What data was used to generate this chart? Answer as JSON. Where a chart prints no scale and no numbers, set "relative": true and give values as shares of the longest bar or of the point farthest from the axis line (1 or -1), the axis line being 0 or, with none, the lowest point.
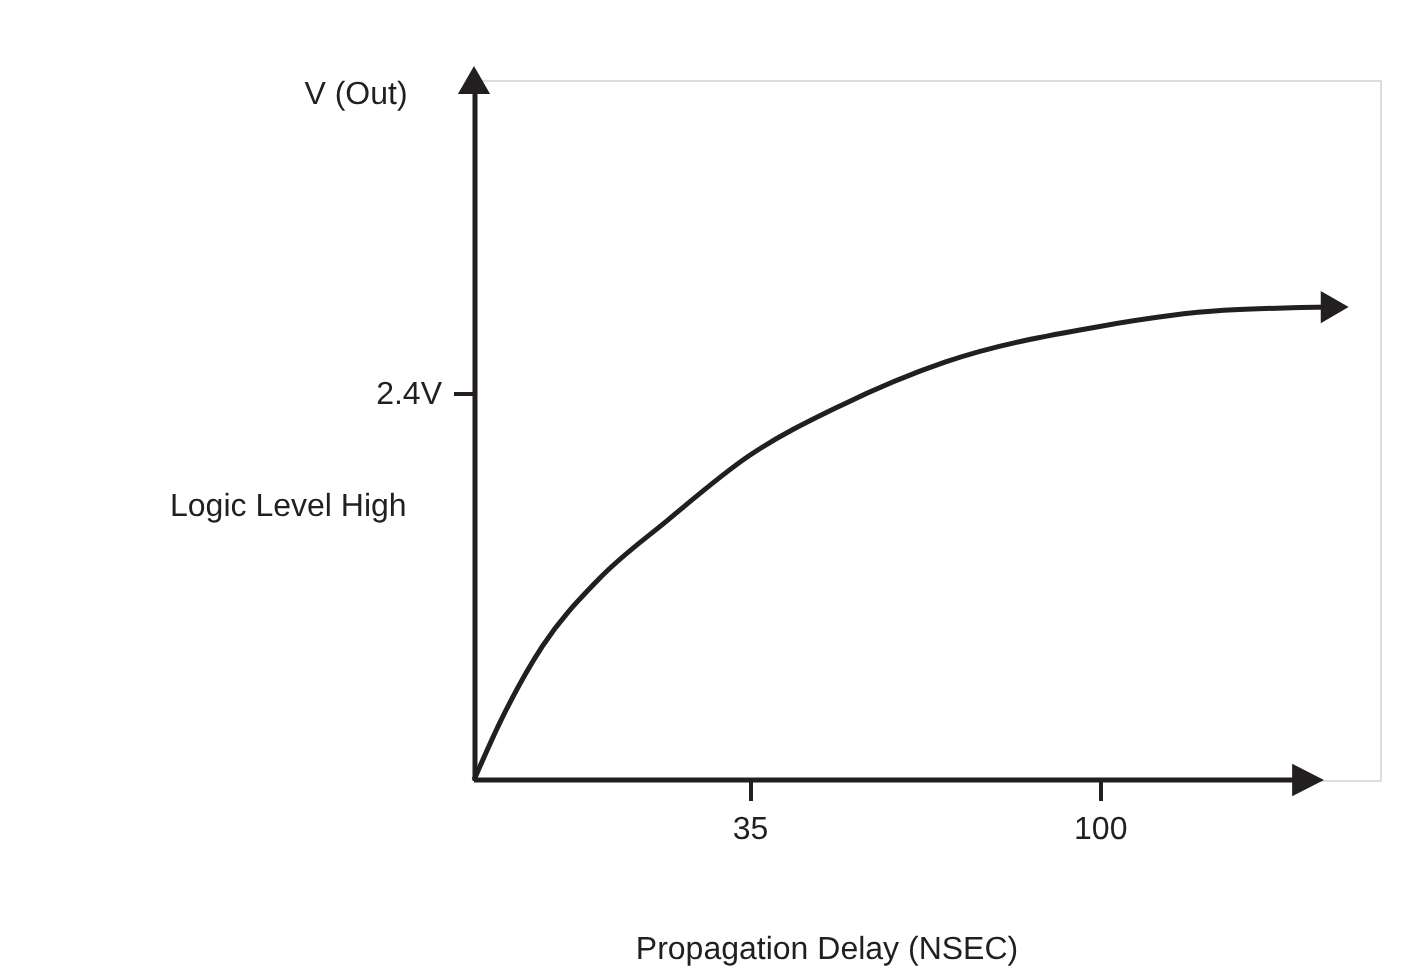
{
  "chart_data": {
    "type": "line",
    "xlabel": "Propagation Delay (NSEC)",
    "relative": true,
    "annotations": [
      "2.4V",
      "Logic Level High",
      "V (Out)"
    ],
    "x": [
      -16.1,
      -11.1,
      -3.4,
      6.9,
      19.8,
      35,
      52,
      71.4,
      100,
      123,
      143.6
    ],
    "series": [
      {
        "color": "#231f20",
        "values": [
          0,
          0.126,
          0.283,
          0.423,
          0.549,
          0.686,
          0.792,
          0.884,
          0.959,
          0.993,
          1
        ]
      }
    ],
    "xlim": [
      -16.1,
      152
    ],
    "xticks": [
      35,
      100
    ],
    "grid": false,
    "marker": "none",
    "line_style": "solid"
  }
}
